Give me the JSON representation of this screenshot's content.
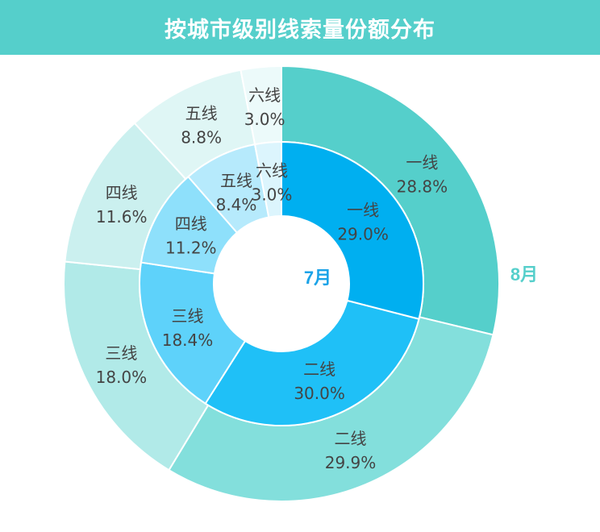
{
  "header": {
    "title": "按城市级别线索量份额分布"
  },
  "chart_data": {
    "type": "pie",
    "title": "按城市级别线索量份额分布",
    "series": [
      {
        "name": "7月",
        "ring": "inner",
        "categories": [
          "一线",
          "二线",
          "三线",
          "四线",
          "五线",
          "六线"
        ],
        "values": [
          29.0,
          30.0,
          18.4,
          11.2,
          8.4,
          3.0
        ],
        "labels": [
          "29.0%",
          "30.0%",
          "18.4%",
          "11.2%",
          "8.4%",
          "3.0%"
        ],
        "colors": [
          "#00aff0",
          "#1fc0f7",
          "#5ed2fa",
          "#8ee0fb",
          "#b6eafc",
          "#dcf5fd"
        ]
      },
      {
        "name": "8月",
        "ring": "outer",
        "categories": [
          "一线",
          "二线",
          "三线",
          "四线",
          "五线",
          "六线"
        ],
        "values": [
          28.8,
          29.9,
          18.0,
          11.6,
          8.8,
          3.0
        ],
        "labels": [
          "28.8%",
          "29.9%",
          "18.0%",
          "11.6%",
          "8.8%",
          "3.0%"
        ],
        "colors": [
          "#55cfcb",
          "#83dfdc",
          "#b1eae8",
          "#cbf0ef",
          "#dff6f5",
          "#ecfafa"
        ]
      }
    ],
    "legend": "none",
    "colors": {
      "header": "#55cfcb",
      "inner_label": "#1aa3e8",
      "outer_label": "#55cfcb",
      "text": "#444444"
    }
  }
}
